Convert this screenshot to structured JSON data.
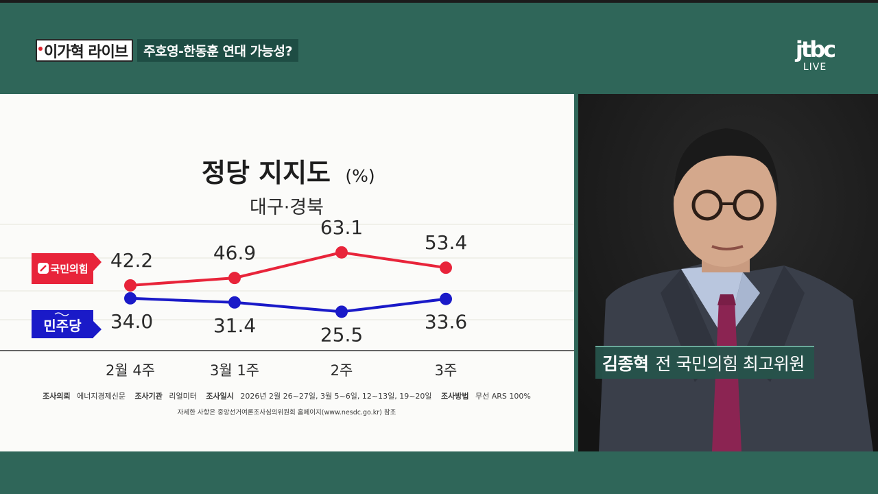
{
  "banner": {
    "program": "이가혁 라이브",
    "topic": "주호영-한동훈 연대 가능성?"
  },
  "broadcaster": {
    "logo": "jtbc",
    "live": "LIVE"
  },
  "chart_data": {
    "type": "line",
    "title": "정당 지지도",
    "title_unit": "(%)",
    "subtitle": "대구·경북",
    "categories": [
      "2월 4주",
      "3월 1주",
      "2주",
      "3주"
    ],
    "series": [
      {
        "name": "국민의힘",
        "color": "#e8243a",
        "values": [
          42.2,
          46.9,
          63.1,
          53.4
        ]
      },
      {
        "name": "민주당",
        "color": "#1a1ac8",
        "values": [
          34.0,
          31.4,
          25.5,
          33.6
        ]
      }
    ],
    "grid": true,
    "legend": "left",
    "badge_icons": [
      "ppp-logo-icon",
      "dpk-logo-icon"
    ]
  },
  "footnote": {
    "line1": [
      {
        "label": "조사의뢰",
        "value": "에너지경제신문"
      },
      {
        "label": "조사기관",
        "value": "리얼미터"
      },
      {
        "label": "조사일시",
        "value": "2026년 2월 26~27일, 3월 5~6일, 12~13일, 19~20일"
      },
      {
        "label": "조사방법",
        "value": "무선 ARS 100%"
      }
    ],
    "line2": "자세한 사항은 중앙선거여론조사심의위원회 홈페이지(www.nesdc.go.kr) 참조"
  },
  "guest": {
    "name": "김종혁",
    "title": "전 국민의힘 최고위원"
  },
  "colors": {
    "frame": "#2f6659",
    "board": "#fbfbf9",
    "ppp": "#e8243a",
    "dpk": "#1a1ac8"
  }
}
